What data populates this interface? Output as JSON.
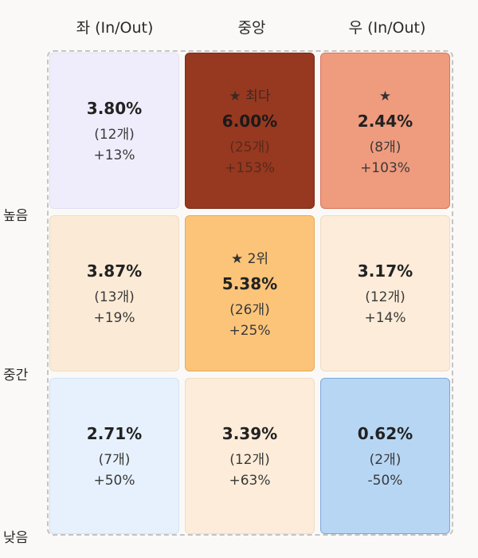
{
  "chart_data": {
    "type": "heatmap",
    "columns": [
      "좌 (In/Out)",
      "중앙",
      "우 (In/Out)"
    ],
    "rows": [
      "높음",
      "중간",
      "낮음"
    ],
    "cells": [
      [
        {
          "pct": "3.80%",
          "count": "(12개)",
          "change": "+13%",
          "badge": "",
          "bg": "#efedfc",
          "text": "#222222",
          "border": "#e2e0f2"
        },
        {
          "pct": "6.00%",
          "count": "(25개)",
          "change": "+153%",
          "badge": "★ 최다",
          "bg": "#973820",
          "text": "#1a1a1a",
          "border": "#7a2c18"
        },
        {
          "pct": "2.44%",
          "count": "(8개)",
          "change": "+103%",
          "badge": "★",
          "bg": "#ef9b7e",
          "text": "#222222",
          "border": "#d9745a"
        }
      ],
      [
        {
          "pct": "3.87%",
          "count": "(13개)",
          "change": "+19%",
          "badge": "",
          "bg": "#fbebd6",
          "text": "#222222",
          "border": "#efdcc3"
        },
        {
          "pct": "5.38%",
          "count": "(26개)",
          "change": "+25%",
          "badge": "★ 2위",
          "bg": "#fbc479",
          "text": "#222222",
          "border": "#e7a95a"
        },
        {
          "pct": "3.17%",
          "count": "(12개)",
          "change": "+14%",
          "badge": "",
          "bg": "#fcecd9",
          "text": "#222222",
          "border": "#efdcc3"
        }
      ],
      [
        {
          "pct": "2.71%",
          "count": "(7개)",
          "change": "+50%",
          "badge": "",
          "bg": "#e6f1fd",
          "text": "#222222",
          "border": "#d3e2f3"
        },
        {
          "pct": "3.39%",
          "count": "(12개)",
          "change": "+63%",
          "badge": "",
          "bg": "#fcecd9",
          "text": "#222222",
          "border": "#efdcc3"
        },
        {
          "pct": "0.62%",
          "count": "(2개)",
          "change": "-50%",
          "badge": "",
          "bg": "#b7d6f4",
          "text": "#222222",
          "border": "#7aa8d8"
        }
      ]
    ]
  }
}
